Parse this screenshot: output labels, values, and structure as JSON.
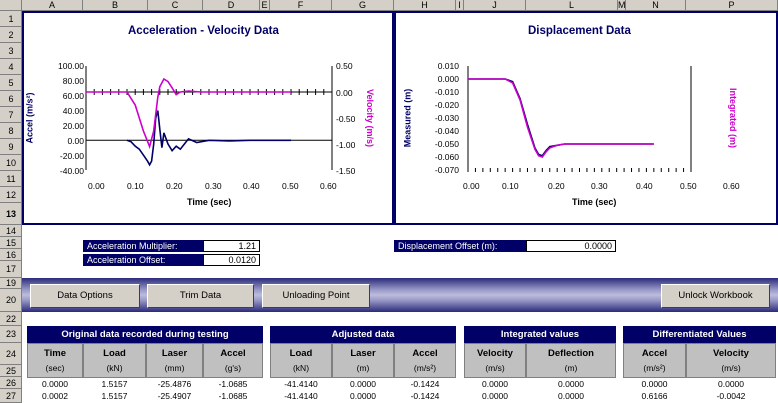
{
  "columns": [
    "A",
    "B",
    "C",
    "D",
    "E",
    "F",
    "G",
    "H",
    "I",
    "J",
    "L",
    "M",
    "N",
    "P"
  ],
  "rows": [
    "1",
    "2",
    "3",
    "4",
    "5",
    "6",
    "7",
    "8",
    "9",
    "10",
    "11",
    "12",
    "13",
    "14",
    "15",
    "16",
    "17",
    "19",
    "20",
    "22",
    "23",
    "24",
    "25",
    "26",
    "27"
  ],
  "accel_chart": {
    "title": "Acceleration - Velocity Data",
    "xlabel": "Time (sec)",
    "ylabel_left": "Accel (m/s²)",
    "ylabel_right": "Velocity (m/s)",
    "x_ticks": [
      "0.00",
      "0.10",
      "0.20",
      "0.30",
      "0.40",
      "0.50",
      "0.60"
    ],
    "y_left_ticks": [
      "100.00",
      "80.00",
      "60.00",
      "40.00",
      "20.00",
      "0.00",
      "-20.00",
      "-40.00"
    ],
    "y_right_ticks": [
      "0.50",
      "0.00",
      "-0.50",
      "-1.00",
      "-1.50"
    ]
  },
  "disp_chart": {
    "title": "Displacement Data",
    "xlabel": "Time (sec)",
    "ylabel_left": "Measured (m)",
    "ylabel_right": "Integrated (m)",
    "x_ticks": [
      "0.00",
      "0.10",
      "0.20",
      "0.30",
      "0.40",
      "0.50",
      "0.60"
    ],
    "y_ticks": [
      "0.010",
      "0.000",
      "-0.010",
      "-0.020",
      "-0.030",
      "-0.040",
      "-0.050",
      "-0.060",
      "-0.070"
    ]
  },
  "chart_data": [
    {
      "type": "line",
      "title": "Acceleration - Velocity Data",
      "xlabel": "Time (sec)",
      "xlim": [
        0,
        0.6
      ],
      "ylabel": "Accel (m/s²)",
      "ylim": [
        -40,
        100
      ],
      "y2label": "Velocity (m/s)",
      "y2lim": [
        -1.5,
        0.5
      ],
      "series": [
        {
          "axis": "left",
          "color": "#000066",
          "x": [
            0.1,
            0.11,
            0.12,
            0.13,
            0.14,
            0.15,
            0.155,
            0.16,
            0.165,
            0.17,
            0.175,
            0.18,
            0.185,
            0.19,
            0.2,
            0.21,
            0.22,
            0.23,
            0.24,
            0.25,
            0.27,
            0.3,
            0.35,
            0.4,
            0.45,
            0.5
          ],
          "y": [
            0,
            -2,
            -8,
            -12,
            -20,
            -28,
            -33,
            -28,
            -5,
            30,
            40,
            15,
            -10,
            10,
            -5,
            -14,
            -8,
            -12,
            -5,
            2,
            -3,
            0,
            -1,
            0,
            0,
            0
          ]
        },
        {
          "axis": "right",
          "color": "#cc00cc",
          "x": [
            0.0,
            0.1,
            0.12,
            0.14,
            0.155,
            0.165,
            0.175,
            0.18,
            0.19,
            0.2,
            0.21,
            0.22,
            0.23,
            0.25,
            0.28,
            0.32,
            0.4,
            0.5
          ],
          "y": [
            0.0,
            0.0,
            -0.25,
            -0.75,
            -1.05,
            -0.75,
            -0.1,
            0.1,
            0.25,
            0.2,
            0.08,
            -0.05,
            0.0,
            0.02,
            0.0,
            0.0,
            0.0,
            0.0
          ]
        }
      ]
    },
    {
      "type": "line",
      "title": "Displacement Data",
      "xlabel": "Time (sec)",
      "xlim": [
        0,
        0.6
      ],
      "ylabel": "Measured (m)",
      "ylim": [
        -0.07,
        0.01
      ],
      "y2label": "Integrated (m)",
      "series": [
        {
          "axis": "left",
          "color": "#000066",
          "x": [
            0.0,
            0.1,
            0.12,
            0.14,
            0.16,
            0.18,
            0.19,
            0.2,
            0.21,
            0.22,
            0.24,
            0.26,
            0.3,
            0.4,
            0.5
          ],
          "y": [
            0.0,
            0.0,
            -0.002,
            -0.015,
            -0.035,
            -0.053,
            -0.058,
            -0.059,
            -0.055,
            -0.052,
            -0.051,
            -0.05,
            -0.05,
            -0.05,
            -0.05
          ]
        },
        {
          "axis": "left",
          "color": "#cc00cc",
          "x": [
            0.0,
            0.1,
            0.12,
            0.14,
            0.16,
            0.18,
            0.19,
            0.2,
            0.21,
            0.22,
            0.24,
            0.26,
            0.3,
            0.4,
            0.5
          ],
          "y": [
            0.0,
            0.0,
            -0.003,
            -0.016,
            -0.037,
            -0.054,
            -0.059,
            -0.06,
            -0.056,
            -0.053,
            -0.051,
            -0.05,
            -0.05,
            -0.05,
            -0.05
          ]
        }
      ]
    }
  ],
  "params": {
    "accel_mult_label": "Acceleration Multiplier:",
    "accel_mult_value": "1.21",
    "accel_offset_label": "Acceleration Offset:",
    "accel_offset_value": "0.0120",
    "disp_offset_label": "Displacement Offset (m):",
    "disp_offset_value": "0.0000"
  },
  "buttons": {
    "data_options": "Data Options",
    "trim_data": "Trim Data",
    "unloading_point": "Unloading Point",
    "unlock_workbook": "Unlock Workbook"
  },
  "table": {
    "groups": [
      "Original data recorded during testing",
      "Adjusted data",
      "Integrated values",
      "Differentiated Values"
    ],
    "headers": [
      {
        "name": "Time",
        "unit": "(sec)"
      },
      {
        "name": "Load",
        "unit": "(kN)"
      },
      {
        "name": "Laser",
        "unit": "(mm)"
      },
      {
        "name": "Accel",
        "unit": "(g's)"
      },
      {
        "name": "Load",
        "unit": "(kN)"
      },
      {
        "name": "Laser",
        "unit": "(m)"
      },
      {
        "name": "Accel",
        "unit": "(m/s²)"
      },
      {
        "name": "Velocity",
        "unit": "(m/s)"
      },
      {
        "name": "Deflection",
        "unit": "(m)"
      },
      {
        "name": "Accel",
        "unit": "(m/s²)"
      },
      {
        "name": "Velocity",
        "unit": "(m/s)"
      }
    ],
    "rows": [
      [
        "0.0000",
        "1.5157",
        "-25.4876",
        "-1.0685",
        "-41.4140",
        "0.0000",
        "-0.1424",
        "0.0000",
        "0.0000",
        "0.0000",
        "0.0000"
      ],
      [
        "0.0002",
        "1.5157",
        "-25.4907",
        "-1.0685",
        "-41.4140",
        "0.0000",
        "-0.1424",
        "0.0000",
        "0.0000",
        "0.6166",
        "-0.0042"
      ]
    ]
  }
}
